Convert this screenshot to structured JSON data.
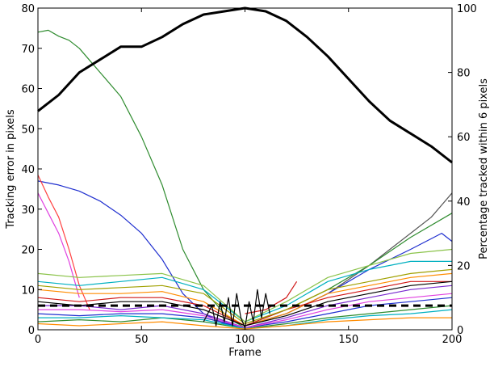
{
  "chart_data": {
    "type": "line",
    "title": "",
    "xlabel": "Frame",
    "ylabel": "Tracking error in pixels",
    "ylabel_right": "Percentage tracked within 6 pixels",
    "xlim": [
      0,
      200
    ],
    "ylim": [
      0,
      80
    ],
    "ylim_right": [
      0,
      100
    ],
    "x_ticks": [
      "0",
      "50",
      "100",
      "150",
      "200"
    ],
    "y_ticks": [
      "0",
      "10",
      "20",
      "30",
      "40",
      "50",
      "60",
      "70",
      "80"
    ],
    "y_ticks_right": [
      "0",
      "20",
      "40",
      "60",
      "80",
      "100"
    ],
    "grid": false,
    "legend": "none",
    "threshold": {
      "y": 6,
      "style": "dashed",
      "color": "#000000"
    },
    "percentage_series": {
      "color": "#000000",
      "axis": "right",
      "x": [
        0,
        10,
        20,
        30,
        40,
        50,
        60,
        70,
        80,
        90,
        100,
        110,
        120,
        130,
        140,
        150,
        160,
        170,
        180,
        190,
        200
      ],
      "values": [
        68,
        73,
        80,
        84,
        88,
        88,
        91,
        95,
        98,
        99,
        100,
        99,
        96,
        91,
        85,
        78,
        71,
        65,
        61,
        57,
        52
      ]
    },
    "series": [
      {
        "color": "#2e8b2e",
        "x": [
          0,
          5,
          10,
          15,
          20,
          25,
          30,
          40,
          50,
          60,
          70,
          80,
          90,
          95,
          100
        ],
        "values": [
          74,
          74.5,
          73,
          72,
          70,
          67,
          64,
          58,
          48,
          36,
          20,
          10,
          4,
          2,
          0.5
        ]
      },
      {
        "color": "#1f2fcf",
        "x": [
          0,
          10,
          20,
          30,
          40,
          50,
          60,
          70,
          80,
          90,
          100
        ],
        "values": [
          37,
          36,
          34.5,
          32,
          28.5,
          24,
          17.5,
          9,
          4,
          1.5,
          0.5
        ]
      },
      {
        "color": "#ff4040",
        "x": [
          0,
          5,
          10,
          15,
          20,
          25
        ],
        "values": [
          38.5,
          33,
          28,
          20,
          11,
          5
        ]
      },
      {
        "color": "#e040e0",
        "x": [
          0,
          5,
          10,
          15,
          20
        ],
        "values": [
          34,
          29,
          24,
          17,
          8
        ]
      },
      {
        "color": "#555555",
        "x": [
          100,
          120,
          140,
          160,
          180,
          190,
          200
        ],
        "values": [
          1,
          4,
          9,
          16,
          24,
          28,
          34
        ]
      },
      {
        "color": "#2e8b2e",
        "x": [
          100,
          120,
          140,
          160,
          180,
          200
        ],
        "values": [
          1,
          5,
          10,
          16,
          23,
          29
        ]
      },
      {
        "color": "#1f2fcf",
        "x": [
          100,
          120,
          140,
          160,
          180,
          195,
          200
        ],
        "values": [
          1,
          4,
          9,
          15,
          20,
          24,
          22
        ]
      },
      {
        "color": "#00b0c0",
        "x": [
          0,
          20,
          40,
          60,
          80,
          100,
          120,
          140,
          160,
          180,
          200
        ],
        "values": [
          12,
          11,
          12,
          13,
          10,
          2,
          6,
          12,
          15,
          17,
          17
        ]
      },
      {
        "color": "#8bc34a",
        "x": [
          0,
          20,
          40,
          60,
          80,
          100,
          120,
          140,
          160,
          180,
          200
        ],
        "values": [
          14,
          13,
          13.5,
          14,
          11,
          2,
          7,
          13,
          16,
          19,
          20
        ]
      },
      {
        "color": "#ff8c00",
        "x": [
          0,
          20,
          40,
          60,
          80,
          100,
          120,
          140,
          160,
          180,
          200
        ],
        "values": [
          10,
          9,
          9,
          9.5,
          7,
          1,
          4,
          9,
          11,
          13,
          14
        ]
      },
      {
        "color": "#d01818",
        "x": [
          0,
          20,
          40,
          60,
          80,
          100,
          120,
          140,
          160,
          180,
          200
        ],
        "values": [
          8,
          7,
          8,
          8,
          6,
          1,
          5,
          8,
          10,
          12,
          12
        ]
      },
      {
        "color": "#7a2ad0",
        "x": [
          0,
          20,
          40,
          60,
          80,
          100,
          120,
          140,
          160,
          180,
          200
        ],
        "values": [
          6,
          6,
          5,
          6,
          4,
          0.5,
          3,
          6,
          8,
          10,
          11
        ]
      },
      {
        "color": "#1f2fcf",
        "x": [
          0,
          20,
          40,
          60,
          80,
          100,
          120,
          140,
          160,
          180,
          200
        ],
        "values": [
          4,
          3.5,
          4,
          4,
          3,
          0.5,
          2,
          4,
          6,
          7,
          8
        ]
      },
      {
        "color": "#2e8b2e",
        "x": [
          0,
          20,
          40,
          60,
          80,
          100,
          120,
          140,
          160,
          180,
          200
        ],
        "values": [
          2,
          2.5,
          2,
          3,
          2,
          0.3,
          1.5,
          3,
          4,
          5,
          6
        ]
      },
      {
        "color": "#a0a000",
        "x": [
          0,
          20,
          40,
          60,
          80,
          100,
          120,
          140,
          160,
          180,
          200
        ],
        "values": [
          11,
          10,
          10.5,
          11,
          9,
          1.5,
          5,
          10,
          12,
          14,
          15
        ]
      },
      {
        "color": "#e040e0",
        "x": [
          0,
          20,
          40,
          60,
          80,
          100,
          120,
          140,
          160,
          180,
          200
        ],
        "values": [
          5,
          5,
          4.5,
          5,
          3.5,
          0.5,
          2.5,
          5,
          7,
          8,
          9
        ]
      },
      {
        "color": "#000000",
        "x": [
          0,
          20,
          40,
          60,
          80,
          100,
          120,
          140,
          160,
          180,
          200
        ],
        "values": [
          7,
          6,
          7,
          7,
          5,
          1,
          3.5,
          7,
          9,
          11,
          12
        ]
      },
      {
        "color": "#00b0c0",
        "x": [
          0,
          20,
          40,
          60,
          80,
          100,
          120,
          140,
          160,
          180,
          200
        ],
        "values": [
          3,
          3,
          3.5,
          3,
          2.5,
          0.3,
          1,
          2.5,
          3.5,
          4,
          5
        ]
      },
      {
        "color": "#ff8c00",
        "x": [
          0,
          20,
          40,
          60,
          80,
          100,
          120,
          140,
          160,
          180,
          200
        ],
        "values": [
          1.5,
          1,
          1.5,
          2,
          1,
          0.2,
          1,
          2,
          2.5,
          3,
          3
        ]
      },
      {
        "color": "#d01818",
        "x": [
          100,
          110,
          120,
          125
        ],
        "values": [
          4,
          5,
          8,
          12
        ]
      },
      {
        "color": "#000000",
        "x": [
          80,
          84,
          86,
          88,
          90,
          92,
          94,
          96,
          98,
          100,
          102,
          104,
          106,
          108,
          110,
          112
        ],
        "values": [
          2,
          6,
          1,
          7,
          2,
          8,
          1,
          9,
          3,
          0.5,
          7,
          2,
          10,
          3,
          9,
          4
        ]
      }
    ]
  }
}
